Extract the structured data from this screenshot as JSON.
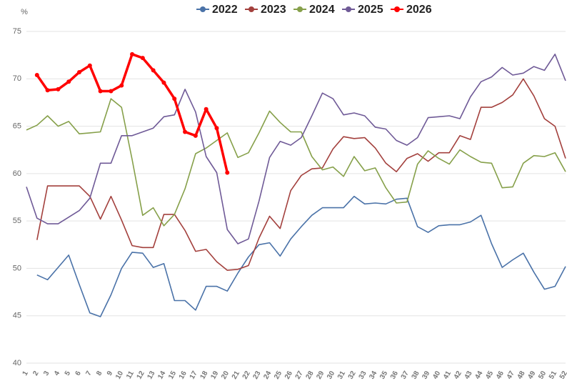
{
  "chart_data": {
    "type": "line",
    "y_unit": "%",
    "categories": [
      "1",
      "2",
      "3",
      "4",
      "5",
      "6",
      "7",
      "8",
      "9",
      "10",
      "11",
      "12",
      "13",
      "14",
      "15",
      "16",
      "17",
      "18",
      "19",
      "20",
      "21",
      "22",
      "23",
      "24",
      "25",
      "26",
      "27",
      "28",
      "29",
      "30",
      "31",
      "32",
      "33",
      "34",
      "35",
      "36",
      "37",
      "38",
      "39",
      "40",
      "41",
      "42",
      "43",
      "44",
      "45",
      "46",
      "47",
      "48",
      "49",
      "50",
      "51",
      "52"
    ],
    "ylim": [
      40,
      75
    ],
    "yticks": [
      40,
      45,
      50,
      55,
      60,
      65,
      70,
      75
    ],
    "grid": true,
    "legend": "top",
    "series": [
      {
        "name": "2022",
        "color": "#4a72a8",
        "values": [
          null,
          49.3,
          48.8,
          50.1,
          51.4,
          48.3,
          45.3,
          44.9,
          47.2,
          50.0,
          51.7,
          51.6,
          50.1,
          50.5,
          46.6,
          46.6,
          45.6,
          48.1,
          48.1,
          47.6,
          49.5,
          51.2,
          52.5,
          52.7,
          51.3,
          53.1,
          54.4,
          55.6,
          56.4,
          56.4,
          56.4,
          57.6,
          56.8,
          56.9,
          56.8,
          57.3,
          57.4,
          54.4,
          53.8,
          54.5,
          54.6,
          54.6,
          54.9,
          55.6,
          52.6,
          50.1,
          50.9,
          51.6,
          49.6,
          47.8,
          48.1,
          50.2
        ]
      },
      {
        "name": "2023",
        "color": "#a3403d",
        "values": [
          null,
          53.0,
          58.7,
          58.7,
          58.7,
          58.7,
          57.6,
          55.2,
          57.6,
          55.1,
          52.4,
          52.2,
          52.2,
          55.7,
          55.7,
          54.0,
          51.8,
          52.0,
          50.7,
          49.8,
          49.9,
          50.3,
          53.2,
          55.5,
          54.2,
          58.2,
          59.8,
          60.5,
          60.6,
          62.6,
          63.9,
          63.7,
          63.8,
          62.7,
          61.1,
          60.2,
          61.6,
          62.1,
          61.3,
          62.2,
          62.2,
          64.0,
          63.6,
          67.0,
          67.0,
          67.5,
          68.3,
          70.0,
          68.2,
          65.8,
          65.0,
          61.6
        ]
      },
      {
        "name": "2024",
        "color": "#86a04a",
        "values": [
          64.6,
          65.1,
          66.1,
          65.0,
          65.5,
          64.2,
          64.3,
          64.4,
          67.9,
          67.0,
          61.5,
          55.6,
          56.4,
          54.5,
          55.7,
          58.4,
          62.1,
          62.7,
          63.5,
          64.3,
          61.7,
          62.2,
          64.3,
          66.6,
          65.4,
          64.4,
          64.4,
          61.8,
          60.4,
          60.7,
          59.7,
          61.8,
          60.3,
          60.6,
          58.5,
          56.9,
          57.0,
          61.0,
          62.4,
          61.6,
          61.0,
          62.5,
          61.8,
          61.2,
          61.1,
          58.5,
          58.6,
          61.1,
          61.9,
          61.8,
          62.2,
          60.2
        ]
      },
      {
        "name": "2025",
        "color": "#6f5a97",
        "values": [
          58.6,
          55.3,
          54.7,
          54.7,
          55.4,
          56.1,
          57.4,
          61.1,
          61.1,
          64.0,
          64.0,
          64.4,
          64.8,
          66.0,
          66.2,
          68.9,
          66.5,
          61.8,
          60.1,
          54.1,
          52.6,
          53.1,
          57.1,
          61.7,
          63.4,
          63.0,
          63.8,
          66.1,
          68.5,
          67.9,
          66.2,
          66.4,
          66.1,
          64.9,
          64.7,
          63.5,
          63.0,
          63.8,
          65.9,
          66.0,
          66.1,
          65.8,
          68.1,
          69.7,
          70.2,
          71.2,
          70.4,
          70.6,
          71.3,
          70.9,
          72.6,
          69.8
        ]
      },
      {
        "name": "2026",
        "color": "#ff0000",
        "markers": true,
        "values": [
          null,
          70.4,
          68.8,
          68.9,
          69.7,
          70.7,
          71.4,
          68.7,
          68.7,
          69.3,
          72.6,
          72.2,
          70.9,
          69.6,
          67.9,
          64.4,
          64.0,
          66.8,
          64.8,
          60.1,
          null,
          null,
          null,
          null,
          null,
          null,
          null,
          null,
          null,
          null,
          null,
          null,
          null,
          null,
          null,
          null,
          null,
          null,
          null,
          null,
          null,
          null,
          null,
          null,
          null,
          null,
          null,
          null,
          null,
          null,
          null,
          null
        ]
      }
    ]
  }
}
